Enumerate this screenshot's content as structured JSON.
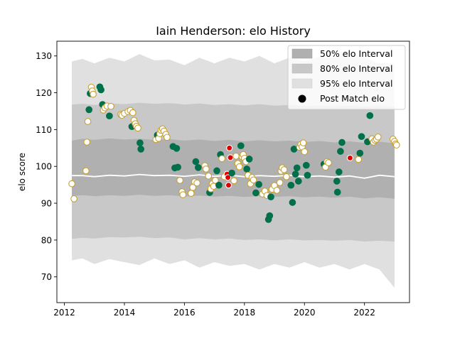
{
  "chart_data": {
    "type": "scatter",
    "title": "Iain Henderson: elo History",
    "xlabel": "",
    "ylabel": "elo score",
    "xlim": [
      2011.75,
      2023.5
    ],
    "ylim": [
      63,
      134
    ],
    "x_ticks": [
      2012,
      2014,
      2016,
      2018,
      2020,
      2022
    ],
    "y_ticks": [
      70,
      80,
      90,
      100,
      110,
      120,
      130
    ],
    "grid": false,
    "legend_position": "top-right",
    "legend": [
      {
        "label": "50% elo Interval",
        "kind": "band",
        "color": "#b0b0b0"
      },
      {
        "label": "80% elo Interval",
        "kind": "band",
        "color": "#c8c8c8"
      },
      {
        "label": "95% elo Interval",
        "kind": "band",
        "color": "#e0e0e0"
      },
      {
        "label": "Post Match elo",
        "kind": "marker",
        "color": "#000000"
      }
    ],
    "colors": {
      "win": "#00704a",
      "loss": "#ffffff",
      "loss_edge": "#c8a030",
      "draw": "#e00000",
      "median_line": "#ffffff",
      "band50": "#b0b0b0",
      "band80": "#c8c8c8",
      "band95": "#e0e0e0"
    },
    "bands": {
      "x": [
        2012.25,
        2012.6,
        2013.0,
        2013.5,
        2014.0,
        2014.5,
        2015.0,
        2015.5,
        2016.0,
        2016.5,
        2017.0,
        2017.5,
        2018.0,
        2018.5,
        2019.0,
        2019.5,
        2020.0,
        2020.5,
        2021.0,
        2021.5,
        2022.0,
        2022.5,
        2023.0
      ],
      "median": [
        97.5,
        97.5,
        97.2,
        97.6,
        97.4,
        97.8,
        97.5,
        97.6,
        97.3,
        97.7,
        97.3,
        97.6,
        97.2,
        97.5,
        97.3,
        97.6,
        97.2,
        97.4,
        97.1,
        97.4,
        96.8,
        97.6,
        97.2
      ],
      "p50_low": [
        92.0,
        92.2,
        91.9,
        92.2,
        92.0,
        92.3,
        92.0,
        92.2,
        91.8,
        92.1,
        91.8,
        92.0,
        91.7,
        91.9,
        91.7,
        91.9,
        91.6,
        91.8,
        91.5,
        91.8,
        91.3,
        91.6,
        91.2
      ],
      "p50_high": [
        107.0,
        107.5,
        107.2,
        107.6,
        107.3,
        107.5,
        107.2,
        107.4,
        107.0,
        107.3,
        106.9,
        107.2,
        106.8,
        107.1,
        106.8,
        107.0,
        106.6,
        106.9,
        106.5,
        106.8,
        106.4,
        106.7,
        106.3
      ],
      "p80_low": [
        80.3,
        80.6,
        80.4,
        80.8,
        80.7,
        80.9,
        80.5,
        80.7,
        80.2,
        80.5,
        80.2,
        80.4,
        80.0,
        80.2,
        79.9,
        80.2,
        79.9,
        80.0,
        79.8,
        80.0,
        79.6,
        79.8,
        79.6
      ],
      "p80_high": [
        116.8,
        117.0,
        116.7,
        117.1,
        116.9,
        117.3,
        117.0,
        117.2,
        116.8,
        117.1,
        116.7,
        116.9,
        116.6,
        116.9,
        116.5,
        116.7,
        116.4,
        116.6,
        116.3,
        116.5,
        116.2,
        116.4,
        116.1
      ],
      "p95_low": [
        74.5,
        75.0,
        73.5,
        74.8,
        74.0,
        73.2,
        75.0,
        73.5,
        74.5,
        72.5,
        74.0,
        73.0,
        73.5,
        72.0,
        73.5,
        72.5,
        74.0,
        72.5,
        73.5,
        72.0,
        73.5,
        72.0,
        67.0
      ],
      "p95_high": [
        128.5,
        129.2,
        128.0,
        129.5,
        128.5,
        130.5,
        128.8,
        129.0,
        127.5,
        129.5,
        128.0,
        129.5,
        128.5,
        130.0,
        128.0,
        129.5,
        128.5,
        129.8,
        129.5,
        131.0,
        129.5,
        128.0,
        128.0
      ]
    },
    "points": [
      {
        "x": 2012.25,
        "y": 95.3,
        "result": "loss"
      },
      {
        "x": 2012.32,
        "y": 91.2,
        "result": "loss"
      },
      {
        "x": 2012.72,
        "y": 98.8,
        "result": "loss"
      },
      {
        "x": 2012.75,
        "y": 106.6,
        "result": "loss"
      },
      {
        "x": 2012.78,
        "y": 112.2,
        "result": "loss"
      },
      {
        "x": 2012.82,
        "y": 115.4,
        "result": "win"
      },
      {
        "x": 2012.86,
        "y": 119.8,
        "result": "win"
      },
      {
        "x": 2012.9,
        "y": 121.5,
        "result": "loss"
      },
      {
        "x": 2012.93,
        "y": 120.5,
        "result": "loss"
      },
      {
        "x": 2012.96,
        "y": 119.6,
        "result": "loss"
      },
      {
        "x": 2013.18,
        "y": 121.6,
        "result": "win"
      },
      {
        "x": 2013.22,
        "y": 120.8,
        "result": "win"
      },
      {
        "x": 2013.27,
        "y": 116.8,
        "result": "win"
      },
      {
        "x": 2013.3,
        "y": 115.3,
        "result": "loss"
      },
      {
        "x": 2013.35,
        "y": 115.9,
        "result": "loss"
      },
      {
        "x": 2013.42,
        "y": 116.4,
        "result": "loss"
      },
      {
        "x": 2013.5,
        "y": 113.7,
        "result": "win"
      },
      {
        "x": 2013.55,
        "y": 116.3,
        "result": "loss"
      },
      {
        "x": 2013.88,
        "y": 114.1,
        "result": "loss"
      },
      {
        "x": 2013.92,
        "y": 113.9,
        "result": "loss"
      },
      {
        "x": 2014.0,
        "y": 114.4,
        "result": "loss"
      },
      {
        "x": 2014.12,
        "y": 114.9,
        "result": "loss"
      },
      {
        "x": 2014.2,
        "y": 115.2,
        "result": "loss"
      },
      {
        "x": 2014.25,
        "y": 110.8,
        "result": "win"
      },
      {
        "x": 2014.28,
        "y": 114.6,
        "result": "loss"
      },
      {
        "x": 2014.32,
        "y": 112.5,
        "result": "loss"
      },
      {
        "x": 2014.36,
        "y": 111.6,
        "result": "loss"
      },
      {
        "x": 2014.4,
        "y": 110.9,
        "result": "loss"
      },
      {
        "x": 2014.45,
        "y": 110.4,
        "result": "loss"
      },
      {
        "x": 2014.52,
        "y": 106.4,
        "result": "win"
      },
      {
        "x": 2014.55,
        "y": 104.7,
        "result": "win"
      },
      {
        "x": 2015.05,
        "y": 107.3,
        "result": "loss"
      },
      {
        "x": 2015.1,
        "y": 108.5,
        "result": "win"
      },
      {
        "x": 2015.14,
        "y": 107.6,
        "result": "loss"
      },
      {
        "x": 2015.18,
        "y": 108.9,
        "result": "loss"
      },
      {
        "x": 2015.22,
        "y": 109.8,
        "result": "loss"
      },
      {
        "x": 2015.27,
        "y": 110.2,
        "result": "loss"
      },
      {
        "x": 2015.32,
        "y": 109.6,
        "result": "loss"
      },
      {
        "x": 2015.38,
        "y": 108.7,
        "result": "loss"
      },
      {
        "x": 2015.42,
        "y": 107.9,
        "result": "loss"
      },
      {
        "x": 2015.62,
        "y": 105.4,
        "result": "win"
      },
      {
        "x": 2015.68,
        "y": 99.6,
        "result": "win"
      },
      {
        "x": 2015.74,
        "y": 104.9,
        "result": "win"
      },
      {
        "x": 2015.78,
        "y": 99.8,
        "result": "win"
      },
      {
        "x": 2015.85,
        "y": 96.2,
        "result": "loss"
      },
      {
        "x": 2015.92,
        "y": 93.1,
        "result": "loss"
      },
      {
        "x": 2015.95,
        "y": 92.3,
        "result": "loss"
      },
      {
        "x": 2016.22,
        "y": 92.7,
        "result": "loss"
      },
      {
        "x": 2016.28,
        "y": 94.3,
        "result": "loss"
      },
      {
        "x": 2016.34,
        "y": 95.8,
        "result": "loss"
      },
      {
        "x": 2016.38,
        "y": 101.3,
        "result": "win"
      },
      {
        "x": 2016.42,
        "y": 95.5,
        "result": "loss"
      },
      {
        "x": 2016.46,
        "y": 99.7,
        "result": "win"
      },
      {
        "x": 2016.68,
        "y": 100.2,
        "result": "loss"
      },
      {
        "x": 2016.72,
        "y": 99.3,
        "result": "loss"
      },
      {
        "x": 2016.8,
        "y": 97.4,
        "result": "loss"
      },
      {
        "x": 2016.84,
        "y": 92.9,
        "result": "win"
      },
      {
        "x": 2016.88,
        "y": 93.9,
        "result": "loss"
      },
      {
        "x": 2016.93,
        "y": 95.3,
        "result": "loss"
      },
      {
        "x": 2016.97,
        "y": 94.6,
        "result": "loss"
      },
      {
        "x": 2017.03,
        "y": 96.2,
        "result": "loss"
      },
      {
        "x": 2017.08,
        "y": 98.8,
        "result": "win"
      },
      {
        "x": 2017.15,
        "y": 94.9,
        "result": "win"
      },
      {
        "x": 2017.2,
        "y": 103.2,
        "result": "win"
      },
      {
        "x": 2017.25,
        "y": 102.1,
        "result": "loss"
      },
      {
        "x": 2017.33,
        "y": 97.2,
        "result": "loss"
      },
      {
        "x": 2017.42,
        "y": 97.9,
        "result": "draw"
      },
      {
        "x": 2017.45,
        "y": 97.0,
        "result": "draw"
      },
      {
        "x": 2017.47,
        "y": 94.9,
        "result": "draw"
      },
      {
        "x": 2017.5,
        "y": 105.0,
        "result": "draw"
      },
      {
        "x": 2017.53,
        "y": 102.4,
        "result": "draw"
      },
      {
        "x": 2017.58,
        "y": 98.2,
        "result": "win"
      },
      {
        "x": 2017.65,
        "y": 96.1,
        "result": "loss"
      },
      {
        "x": 2017.72,
        "y": 102.8,
        "result": "loss"
      },
      {
        "x": 2017.78,
        "y": 100.8,
        "result": "loss"
      },
      {
        "x": 2017.83,
        "y": 99.9,
        "result": "loss"
      },
      {
        "x": 2017.88,
        "y": 105.6,
        "result": "win"
      },
      {
        "x": 2017.92,
        "y": 102.6,
        "result": "loss"
      },
      {
        "x": 2017.96,
        "y": 103.2,
        "result": "loss"
      },
      {
        "x": 2018.0,
        "y": 102.2,
        "result": "loss"
      },
      {
        "x": 2018.05,
        "y": 101.3,
        "result": "loss"
      },
      {
        "x": 2018.08,
        "y": 99.3,
        "result": "win"
      },
      {
        "x": 2018.12,
        "y": 97.6,
        "result": "loss"
      },
      {
        "x": 2018.16,
        "y": 102.0,
        "result": "win"
      },
      {
        "x": 2018.2,
        "y": 95.3,
        "result": "loss"
      },
      {
        "x": 2018.25,
        "y": 97.0,
        "result": "loss"
      },
      {
        "x": 2018.3,
        "y": 96.3,
        "result": "loss"
      },
      {
        "x": 2018.38,
        "y": 92.8,
        "result": "win"
      },
      {
        "x": 2018.48,
        "y": 95.1,
        "result": "win"
      },
      {
        "x": 2018.6,
        "y": 92.5,
        "result": "loss"
      },
      {
        "x": 2018.68,
        "y": 93.3,
        "result": "loss"
      },
      {
        "x": 2018.75,
        "y": 92.1,
        "result": "loss"
      },
      {
        "x": 2018.8,
        "y": 85.6,
        "result": "win"
      },
      {
        "x": 2018.84,
        "y": 86.6,
        "result": "win"
      },
      {
        "x": 2018.88,
        "y": 91.7,
        "result": "win"
      },
      {
        "x": 2018.92,
        "y": 93.8,
        "result": "loss"
      },
      {
        "x": 2019.0,
        "y": 94.8,
        "result": "loss"
      },
      {
        "x": 2019.08,
        "y": 93.5,
        "result": "loss"
      },
      {
        "x": 2019.18,
        "y": 95.6,
        "result": "loss"
      },
      {
        "x": 2019.22,
        "y": 98.7,
        "result": "loss"
      },
      {
        "x": 2019.26,
        "y": 99.6,
        "result": "loss"
      },
      {
        "x": 2019.32,
        "y": 99.1,
        "result": "loss"
      },
      {
        "x": 2019.4,
        "y": 97.2,
        "result": "loss"
      },
      {
        "x": 2019.55,
        "y": 94.9,
        "result": "win"
      },
      {
        "x": 2019.6,
        "y": 90.2,
        "result": "win"
      },
      {
        "x": 2019.65,
        "y": 104.7,
        "result": "win"
      },
      {
        "x": 2019.7,
        "y": 97.9,
        "result": "win"
      },
      {
        "x": 2019.75,
        "y": 99.6,
        "result": "win"
      },
      {
        "x": 2019.8,
        "y": 96.0,
        "result": "win"
      },
      {
        "x": 2019.84,
        "y": 105.2,
        "result": "loss"
      },
      {
        "x": 2019.88,
        "y": 106.0,
        "result": "loss"
      },
      {
        "x": 2019.92,
        "y": 105.3,
        "result": "loss"
      },
      {
        "x": 2019.96,
        "y": 106.4,
        "result": "loss"
      },
      {
        "x": 2020.0,
        "y": 104.0,
        "result": "loss"
      },
      {
        "x": 2020.06,
        "y": 100.3,
        "result": "win"
      },
      {
        "x": 2020.1,
        "y": 97.6,
        "result": "win"
      },
      {
        "x": 2020.65,
        "y": 100.6,
        "result": "win"
      },
      {
        "x": 2020.7,
        "y": 99.8,
        "result": "loss"
      },
      {
        "x": 2020.75,
        "y": 101.3,
        "result": "loss"
      },
      {
        "x": 2020.8,
        "y": 101.0,
        "result": "loss"
      },
      {
        "x": 2021.08,
        "y": 96.0,
        "result": "win"
      },
      {
        "x": 2021.1,
        "y": 93.0,
        "result": "win"
      },
      {
        "x": 2021.15,
        "y": 98.5,
        "result": "win"
      },
      {
        "x": 2021.2,
        "y": 104.1,
        "result": "win"
      },
      {
        "x": 2021.25,
        "y": 106.5,
        "result": "win"
      },
      {
        "x": 2021.52,
        "y": 102.3,
        "result": "draw"
      },
      {
        "x": 2021.8,
        "y": 101.9,
        "result": "loss"
      },
      {
        "x": 2021.85,
        "y": 103.6,
        "result": "win"
      },
      {
        "x": 2021.9,
        "y": 108.1,
        "result": "win"
      },
      {
        "x": 2022.1,
        "y": 106.7,
        "result": "win"
      },
      {
        "x": 2022.18,
        "y": 113.8,
        "result": "win"
      },
      {
        "x": 2022.25,
        "y": 107.5,
        "result": "loss"
      },
      {
        "x": 2022.3,
        "y": 106.6,
        "result": "loss"
      },
      {
        "x": 2022.35,
        "y": 107.1,
        "result": "loss"
      },
      {
        "x": 2022.4,
        "y": 107.4,
        "result": "loss"
      },
      {
        "x": 2022.45,
        "y": 108.0,
        "result": "loss"
      },
      {
        "x": 2022.95,
        "y": 107.4,
        "result": "loss"
      },
      {
        "x": 2023.0,
        "y": 106.8,
        "result": "loss"
      },
      {
        "x": 2023.04,
        "y": 106.1,
        "result": "loss"
      },
      {
        "x": 2023.07,
        "y": 105.8,
        "result": "loss"
      }
    ]
  }
}
